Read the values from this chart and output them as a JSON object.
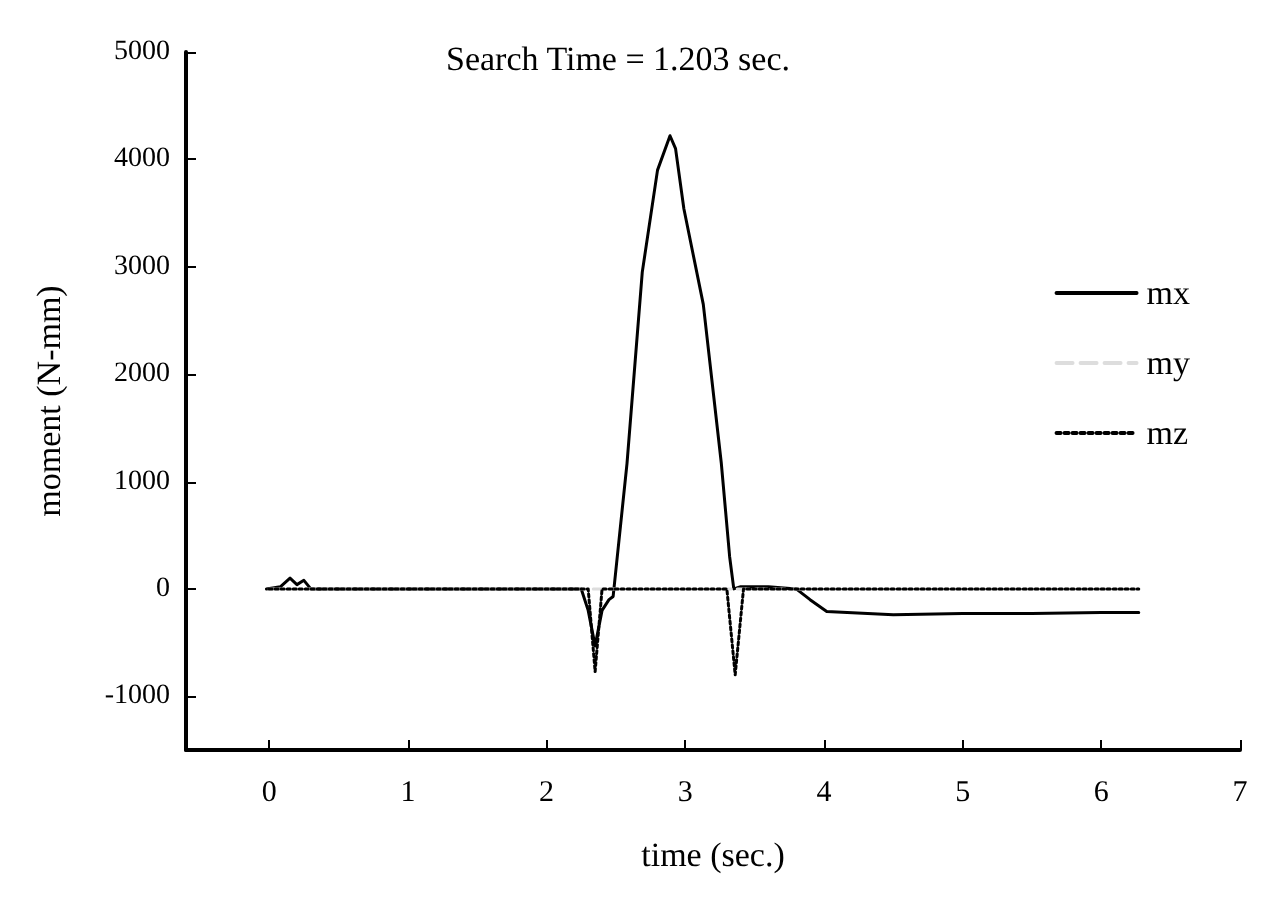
{
  "chart_data": {
    "type": "line",
    "title": "Search Time = 1.203 sec.",
    "xlabel": "time (sec.)",
    "ylabel": "moment (N-mm)",
    "xlim": [
      -0.6,
      7
    ],
    "xticks": [
      0,
      1,
      2,
      3,
      4,
      5,
      6,
      7
    ],
    "ylim": [
      -1500,
      5000
    ],
    "yticks": [
      -1000,
      0,
      1000,
      2000,
      3000,
      4000,
      5000
    ],
    "legend": "right",
    "grid": false,
    "series": [
      {
        "name": "mx",
        "color": "#000000",
        "line_style": "solid",
        "x": [
          -0.02,
          0.08,
          0.15,
          0.2,
          0.25,
          0.3,
          1.0,
          2.0,
          2.25,
          2.3,
          2.35,
          2.4,
          2.45,
          2.48,
          2.58,
          2.69,
          2.8,
          2.89,
          2.93,
          2.99,
          3.13,
          3.26,
          3.32,
          3.35,
          3.4,
          3.6,
          3.8,
          3.9,
          4.02,
          4.5,
          5.0,
          5.5,
          6.0,
          6.27
        ],
        "values": [
          0,
          20,
          100,
          40,
          80,
          0,
          0,
          0,
          0,
          -200,
          -530,
          -200,
          -100,
          -70,
          1170,
          2950,
          3900,
          4220,
          4100,
          3540,
          2650,
          1170,
          300,
          0,
          20,
          20,
          0,
          -100,
          -210,
          -240,
          -230,
          -230,
          -220,
          -220
        ]
      },
      {
        "name": "my",
        "color": "#dddddd",
        "line_style": "dashed",
        "x": [
          0,
          6.27
        ],
        "values": [
          0,
          0
        ]
      },
      {
        "name": "mz",
        "color": "#000000",
        "line_style": "dotted",
        "x": [
          0,
          2.3,
          2.35,
          2.4,
          3.3,
          3.36,
          3.42,
          6.27
        ],
        "values": [
          0,
          0,
          -770,
          0,
          0,
          -800,
          0,
          0
        ]
      }
    ]
  }
}
